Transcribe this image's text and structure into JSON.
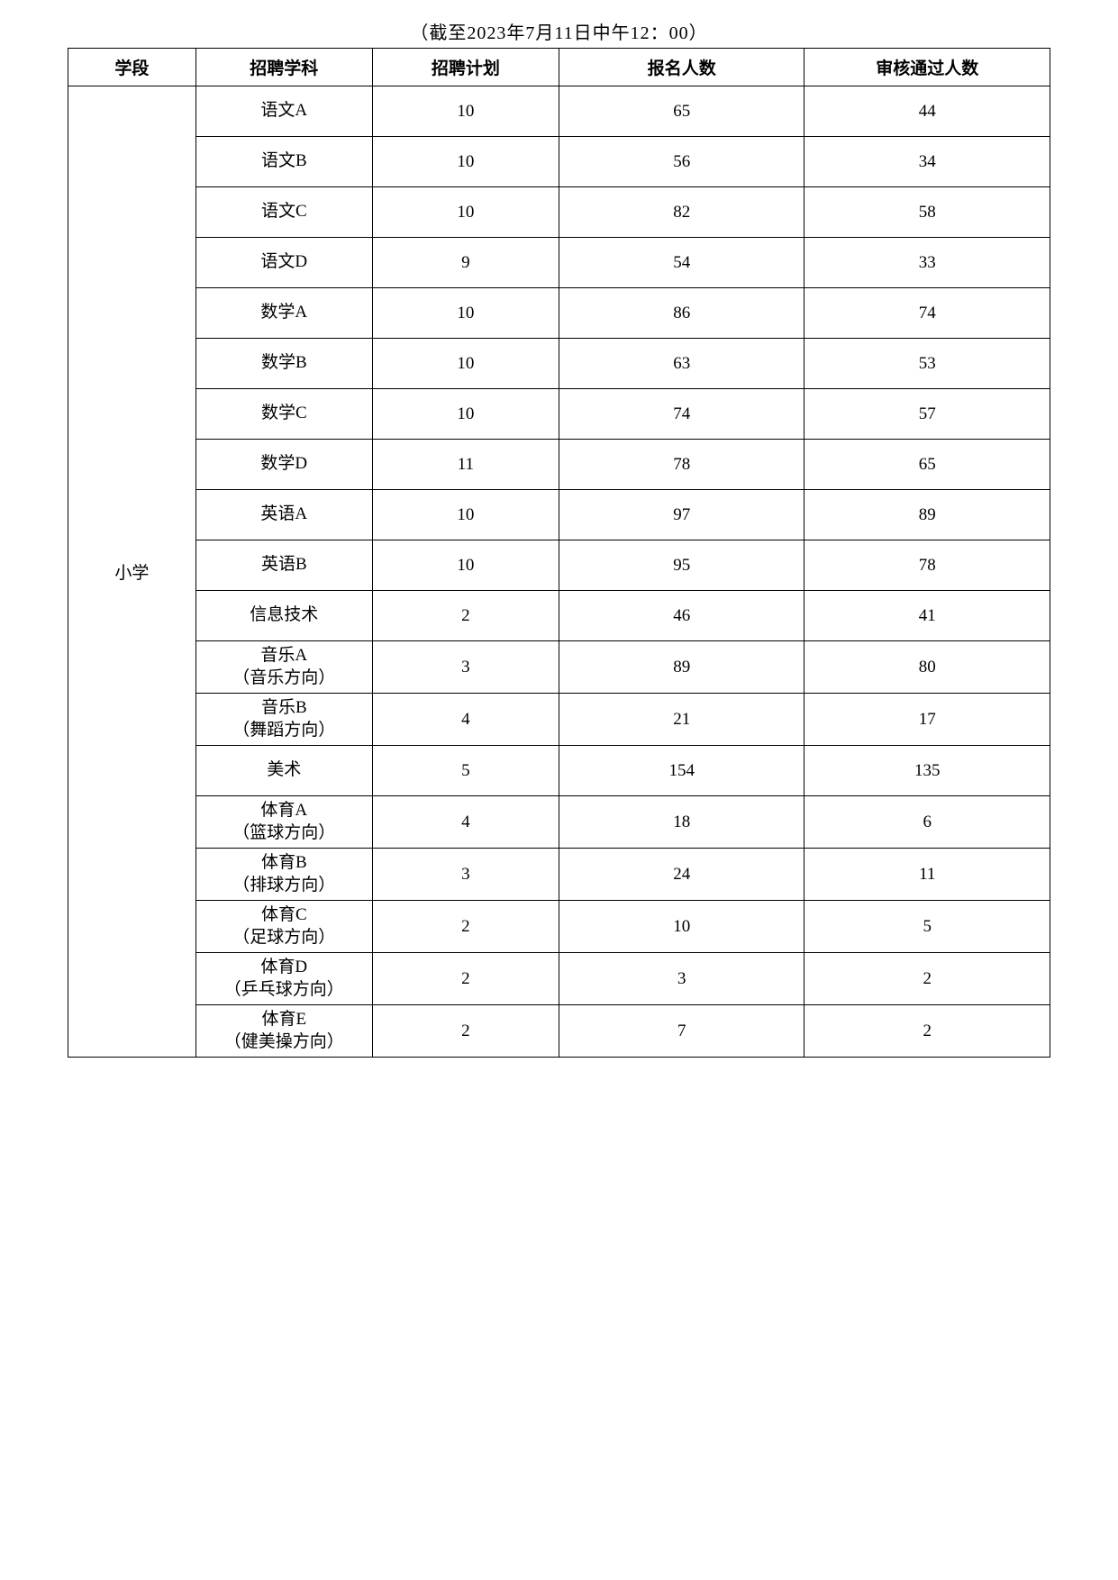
{
  "caption": "（截至2023年7月11日中午12：00）",
  "table": {
    "columns": [
      "学段",
      "招聘学科",
      "招聘计划",
      "报名人数",
      "审核通过人数"
    ],
    "stage_label": "小学",
    "rows": [
      {
        "subject": "语文A",
        "plan": "10",
        "applicants": "65",
        "approved": "44",
        "multi": false
      },
      {
        "subject": "语文B",
        "plan": "10",
        "applicants": "56",
        "approved": "34",
        "multi": false
      },
      {
        "subject": "语文C",
        "plan": "10",
        "applicants": "82",
        "approved": "58",
        "multi": false
      },
      {
        "subject": "语文D",
        "plan": "9",
        "applicants": "54",
        "approved": "33",
        "multi": false
      },
      {
        "subject": "数学A",
        "plan": "10",
        "applicants": "86",
        "approved": "74",
        "multi": false
      },
      {
        "subject": "数学B",
        "plan": "10",
        "applicants": "63",
        "approved": "53",
        "multi": false
      },
      {
        "subject": "数学C",
        "plan": "10",
        "applicants": "74",
        "approved": "57",
        "multi": false
      },
      {
        "subject": "数学D",
        "plan": "11",
        "applicants": "78",
        "approved": "65",
        "multi": false
      },
      {
        "subject": "英语A",
        "plan": "10",
        "applicants": "97",
        "approved": "89",
        "multi": false
      },
      {
        "subject": "英语B",
        "plan": "10",
        "applicants": "95",
        "approved": "78",
        "multi": false
      },
      {
        "subject": "信息技术",
        "plan": "2",
        "applicants": "46",
        "approved": "41",
        "multi": false
      },
      {
        "subject": "音乐A",
        "subject2": "（音乐方向）",
        "plan": "3",
        "applicants": "89",
        "approved": "80",
        "multi": true
      },
      {
        "subject": "音乐B",
        "subject2": "（舞蹈方向）",
        "plan": "4",
        "applicants": "21",
        "approved": "17",
        "multi": true
      },
      {
        "subject": "美术",
        "plan": "5",
        "applicants": "154",
        "approved": "135",
        "multi": false
      },
      {
        "subject": "体育A",
        "subject2": "（篮球方向）",
        "plan": "4",
        "applicants": "18",
        "approved": "6",
        "multi": true
      },
      {
        "subject": "体育B",
        "subject2": "（排球方向）",
        "plan": "3",
        "applicants": "24",
        "approved": "11",
        "multi": true
      },
      {
        "subject": "体育C",
        "subject2": "（足球方向）",
        "plan": "2",
        "applicants": "10",
        "approved": "5",
        "multi": true
      },
      {
        "subject": "体育D",
        "subject2": "（乒乓球方向）",
        "plan": "2",
        "applicants": "3",
        "approved": "2",
        "multi": true
      },
      {
        "subject": "体育E",
        "subject2": "（健美操方向）",
        "plan": "2",
        "applicants": "7",
        "approved": "2",
        "multi": true
      }
    ]
  }
}
